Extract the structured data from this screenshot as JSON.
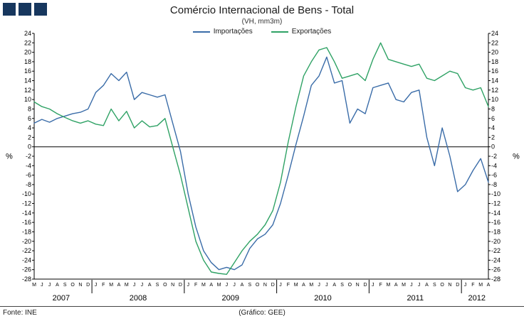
{
  "header": {
    "title": "Comércio Internacional de Bens - Total",
    "subtitle": "(VH, mm3m)"
  },
  "logo": {
    "square_count": 3,
    "color": "#17375e"
  },
  "footer": {
    "source": "Fonte: INE",
    "credit": "(Gráfico: GEE)"
  },
  "chart_data": {
    "type": "line",
    "title": "Comércio Internacional de Bens - Total",
    "subtitle": "(VH, mm3m)",
    "legend_position": "top",
    "grid": false,
    "zero_line": true,
    "y_axis": {
      "min": -28,
      "max": 24,
      "step": 2,
      "unit_label": "%",
      "both_sides": true
    },
    "years": [
      {
        "label": "2007",
        "months": [
          "M",
          "J",
          "J",
          "A",
          "S",
          "O",
          "N",
          "D"
        ]
      },
      {
        "label": "2008",
        "months": [
          "J",
          "F",
          "M",
          "A",
          "M",
          "J",
          "J",
          "A",
          "S",
          "O",
          "N",
          "D"
        ]
      },
      {
        "label": "2009",
        "months": [
          "J",
          "F",
          "M",
          "A",
          "M",
          "J",
          "J",
          "A",
          "S",
          "O",
          "N",
          "D"
        ]
      },
      {
        "label": "2010",
        "months": [
          "J",
          "F",
          "M",
          "A",
          "M",
          "J",
          "J",
          "A",
          "S",
          "O",
          "N",
          "D"
        ]
      },
      {
        "label": "2011",
        "months": [
          "J",
          "F",
          "M",
          "A",
          "M",
          "J",
          "J",
          "A",
          "S",
          "O",
          "N",
          "D"
        ]
      },
      {
        "label": "2012",
        "months": [
          "J",
          "F",
          "M",
          "A"
        ]
      }
    ],
    "series": [
      {
        "name": "Importações",
        "color": "#3a6ca8",
        "values": [
          5.0,
          5.8,
          5.2,
          6.0,
          6.5,
          7.0,
          7.3,
          8.0,
          11.5,
          13.0,
          15.5,
          14.0,
          15.8,
          10.0,
          11.5,
          11.0,
          10.5,
          11.0,
          5.0,
          -1.0,
          -10.0,
          -17.0,
          -22.0,
          -24.5,
          -26.0,
          -25.5,
          -26.0,
          -25.0,
          -21.5,
          -19.5,
          -18.5,
          -16.5,
          -12.0,
          -6.0,
          0.5,
          6.5,
          13.0,
          15.0,
          19.0,
          13.5,
          14.0,
          5.0,
          8.0,
          7.0,
          12.5,
          13.0,
          13.5,
          10.0,
          9.5,
          11.5,
          12.0,
          2.0,
          -4.0,
          4.0,
          -2.0,
          -9.5,
          -8.0,
          -5.0,
          -2.5,
          -7.5
        ]
      },
      {
        "name": "Exportações",
        "color": "#2fa265",
        "values": [
          9.5,
          8.5,
          8.0,
          7.0,
          6.2,
          5.5,
          5.0,
          5.5,
          4.8,
          4.5,
          8.0,
          5.5,
          7.5,
          4.0,
          5.5,
          4.2,
          4.5,
          6.0,
          0.0,
          -6.0,
          -13.0,
          -20.0,
          -24.0,
          -26.5,
          -26.8,
          -27.0,
          -24.5,
          -22.0,
          -20.0,
          -18.5,
          -16.5,
          -13.5,
          -7.5,
          1.0,
          8.5,
          15.0,
          18.0,
          20.5,
          21.0,
          18.0,
          14.5,
          15.0,
          15.5,
          14.0,
          18.5,
          22.0,
          18.5,
          18.0,
          17.5,
          17.0,
          17.5,
          14.5,
          14.0,
          15.0,
          16.0,
          15.5,
          12.5,
          12.0,
          12.5,
          8.5
        ]
      }
    ]
  }
}
